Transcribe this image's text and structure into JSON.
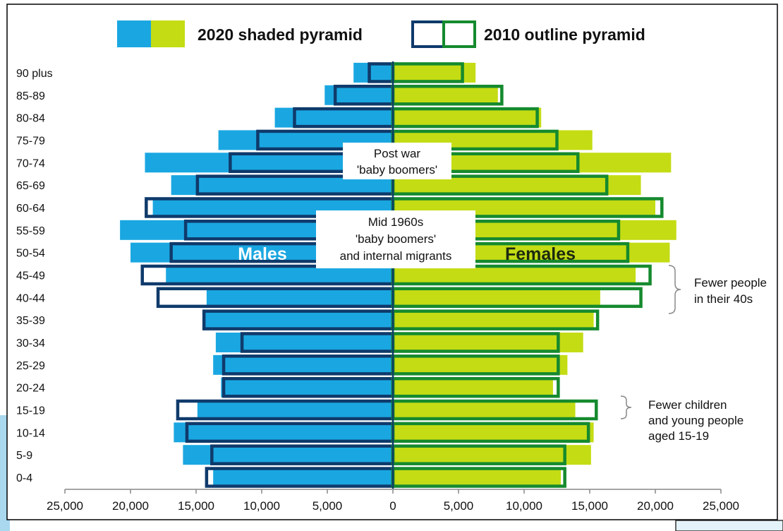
{
  "colors": {
    "male_2020": "#1aa7e1",
    "female_2020": "#c4dc14",
    "male_2010": "#0f3a6b",
    "female_2010": "#158a2e",
    "corner_accent": "#a9d8ef",
    "corner_box": "#e4f3f9",
    "annotation_bracket": "#888888"
  },
  "legend": {
    "shaded_label": "2020 shaded pyramid",
    "outline_label": "2010 outline pyramid"
  },
  "annotations": {
    "post_war_line1": "Post war",
    "post_war_line2": "'baby boomers'",
    "mid60s_line1": "Mid 1960s",
    "mid60s_line2": "'baby boomers'",
    "mid60s_line3": "and internal migrants",
    "males": "Males",
    "females": "Females",
    "forties_line1": "Fewer people",
    "forties_line2": "in their 40s",
    "children_line1": "Fewer children",
    "children_line2": "and young people",
    "children_line3": "aged 15-19"
  },
  "chart_data": {
    "type": "bar",
    "orientation": "horizontal",
    "categories": [
      "90 plus",
      "85-89",
      "80-84",
      "75-79",
      "70-74",
      "65-69",
      "60-64",
      "55-59",
      "50-54",
      "45-49",
      "40-44",
      "35-39",
      "30-34",
      "25-29",
      "20-24",
      "15-19",
      "10-14",
      "5-9",
      "0-4"
    ],
    "series": [
      {
        "name": "2020 shaded pyramid",
        "sex": "male",
        "style": "shaded",
        "values": [
          3000,
          5200,
          9000,
          13300,
          18900,
          16900,
          18300,
          20800,
          20000,
          17300,
          14200,
          14300,
          13500,
          13700,
          13100,
          14900,
          16700,
          16000,
          13700
        ]
      },
      {
        "name": "2020 shaded pyramid",
        "sex": "female",
        "style": "shaded",
        "values": [
          6300,
          8000,
          11300,
          15200,
          21200,
          18900,
          20000,
          21600,
          21100,
          18500,
          15800,
          15300,
          14500,
          13300,
          12200,
          13900,
          15300,
          15100,
          12800
        ]
      },
      {
        "name": "2010 outline pyramid",
        "sex": "male",
        "style": "outline",
        "values": [
          1800,
          4400,
          7500,
          10300,
          12400,
          14900,
          18800,
          15800,
          16900,
          19100,
          17900,
          14400,
          11500,
          12900,
          12900,
          16400,
          15700,
          13800,
          14200
        ]
      },
      {
        "name": "2010 outline pyramid",
        "sex": "female",
        "style": "outline",
        "values": [
          5300,
          8300,
          11000,
          12500,
          14100,
          16300,
          20500,
          17200,
          17900,
          19600,
          18900,
          15600,
          12600,
          12600,
          12600,
          15500,
          14900,
          13100,
          13100
        ]
      }
    ],
    "xticks": [
      -25000,
      -20000,
      -15000,
      -10000,
      -5000,
      0,
      5000,
      10000,
      15000,
      20000,
      25000
    ],
    "xtick_labels": [
      "25,000",
      "20,000",
      "15,000",
      "10,000",
      "5,000",
      "0",
      "5,000",
      "10,000",
      "15,000",
      "20,000",
      "25,000"
    ],
    "xlim": [
      -25000,
      25000
    ],
    "legend_position": "top",
    "grid": false,
    "xlabel": "",
    "ylabel": ""
  }
}
